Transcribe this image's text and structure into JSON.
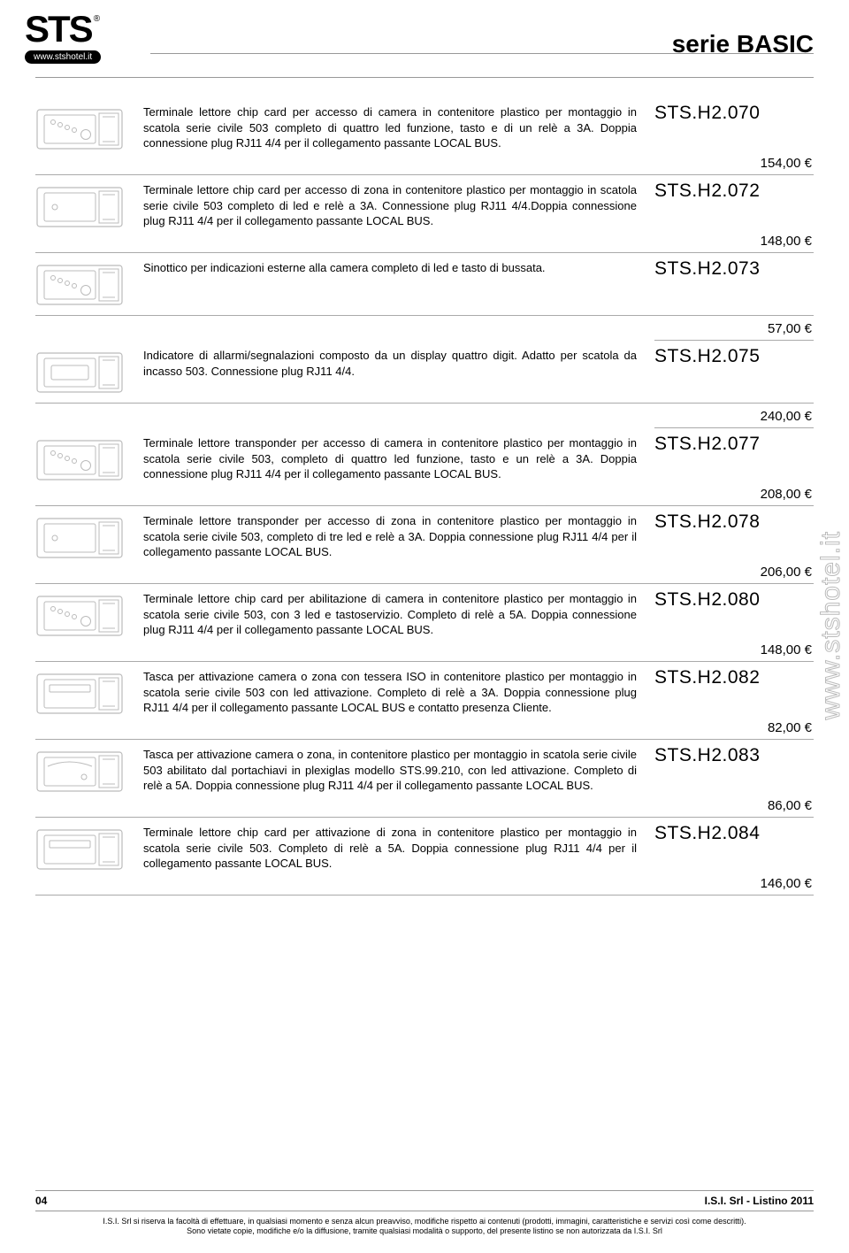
{
  "header": {
    "logo_text": "STS",
    "logo_reg": "®",
    "logo_url": "www.stshotel.it",
    "title": "serie BASIC"
  },
  "side_url": "www.stshotel.it",
  "products": [
    {
      "desc": "Terminale lettore chip card per accesso di camera in contenitore plastico per montaggio in scatola serie civile 503 completo di quattro led funzione, tasto e di un relè a 3A. Doppia connessione plug RJ11 4/4 per il collegamento passante LOCAL BUS.",
      "code": "STS.H2.070",
      "price": "154,00 €",
      "thumb": "panel_4led"
    },
    {
      "desc": "Terminale lettore chip card per accesso di zona in contenitore plastico per montaggio in scatola serie civile 503 completo di led e relè a 3A. Connessione plug RJ11 4/4.Doppia connessione plug RJ11 4/4 per il collegamento passante LOCAL BUS.",
      "code": "STS.H2.072",
      "price": "148,00 €",
      "thumb": "panel_1led"
    },
    {
      "desc": "Sinottico per indicazioni esterne alla camera completo di led e tasto di bussata.",
      "code": "STS.H2.073",
      "price": "57,00 €",
      "thumb": "panel_4led",
      "price_below": true
    },
    {
      "desc": "Indicatore di allarmi/segnalazioni composto da un display quattro digit. Adatto per scatola da incasso 503. Connessione plug RJ11 4/4.",
      "code": "STS.H2.075",
      "price": "240,00 €",
      "thumb": "panel_display",
      "price_below": true
    },
    {
      "desc": "Terminale lettore transponder per accesso di camera in contenitore plastico per montaggio in scatola serie civile 503, completo di quattro led funzione, tasto e un relè a 3A. Doppia connessione plug RJ11 4/4 per il collegamento passante LOCAL BUS.",
      "code": "STS.H2.077",
      "price": "208,00 €",
      "thumb": "panel_4led"
    },
    {
      "desc": "Terminale lettore transponder per accesso di zona in contenitore plastico per montaggio in scatola serie civile 503, completo di tre led e relè a 3A. Doppia connessione plug RJ11 4/4 per il collegamento passante LOCAL BUS.",
      "code": "STS.H2.078",
      "price": "206,00 €",
      "thumb": "panel_1led"
    },
    {
      "desc": "Terminale lettore chip card per abilitazione di camera in contenitore plastico per montaggio in scatola serie civile 503, con 3 led e tastoservizio. Completo di relè a 5A. Doppia connessione plug RJ11 4/4 per il collegamento passante LOCAL BUS.",
      "code": "STS.H2.080",
      "price": "148,00 €",
      "thumb": "panel_4led"
    },
    {
      "desc": "Tasca per attivazione camera o zona con tessera ISO in contenitore plastico per montaggio in scatola serie civile 503 con led attivazione.  Completo di relè a 3A. Doppia connessione plug RJ11 4/4 per il collegamento passante LOCAL BUS e  contatto presenza Cliente.",
      "code": "STS.H2.082",
      "price": "82,00 €",
      "thumb": "panel_slot"
    },
    {
      "desc": "Tasca per attivazione camera o zona, in contenitore plastico per montaggio in scatola serie civile 503 abilitato dal portachiavi in plexiglas modello STS.99.210, con led attivazione. Completo di relè a 5A. Doppia connessione plug RJ11 4/4 per il collegamento passante LOCAL BUS.",
      "code": "STS.H2.083",
      "price": "86,00 €",
      "thumb": "panel_curve"
    },
    {
      "desc": "Terminale lettore chip card per attivazione di zona in contenitore plastico per montaggio in scatola serie civile 503. Completo di relè a 5A. Doppia connessione plug RJ11 4/4 per il collegamento passante LOCAL BUS.",
      "code": "STS.H2.084",
      "price": "146,00 €",
      "thumb": "panel_slot"
    }
  ],
  "footer": {
    "page_num": "04",
    "right": "I.S.I. Srl - Listino 2011",
    "legal1": "I.S.I. Srl si riserva la facoltà di effettuare, in qualsiasi momento e senza alcun preavviso, modifiche rispetto ai contenuti (prodotti, immagini, caratteristiche e servizi così come descritti).",
    "legal2": "Sono vietate copie, modifiche e/o la diffusione, tramite qualsiasi modalità o supporto, del presente listino se non autorizzata da I.S.I. Srl"
  },
  "style": {
    "thumb_stroke": "#bbbbbb",
    "thumb_fill": "#ffffff",
    "rule_color": "#aaaaaa",
    "desc_fontsize": 13,
    "code_fontsize": 21,
    "price_fontsize": 15
  }
}
